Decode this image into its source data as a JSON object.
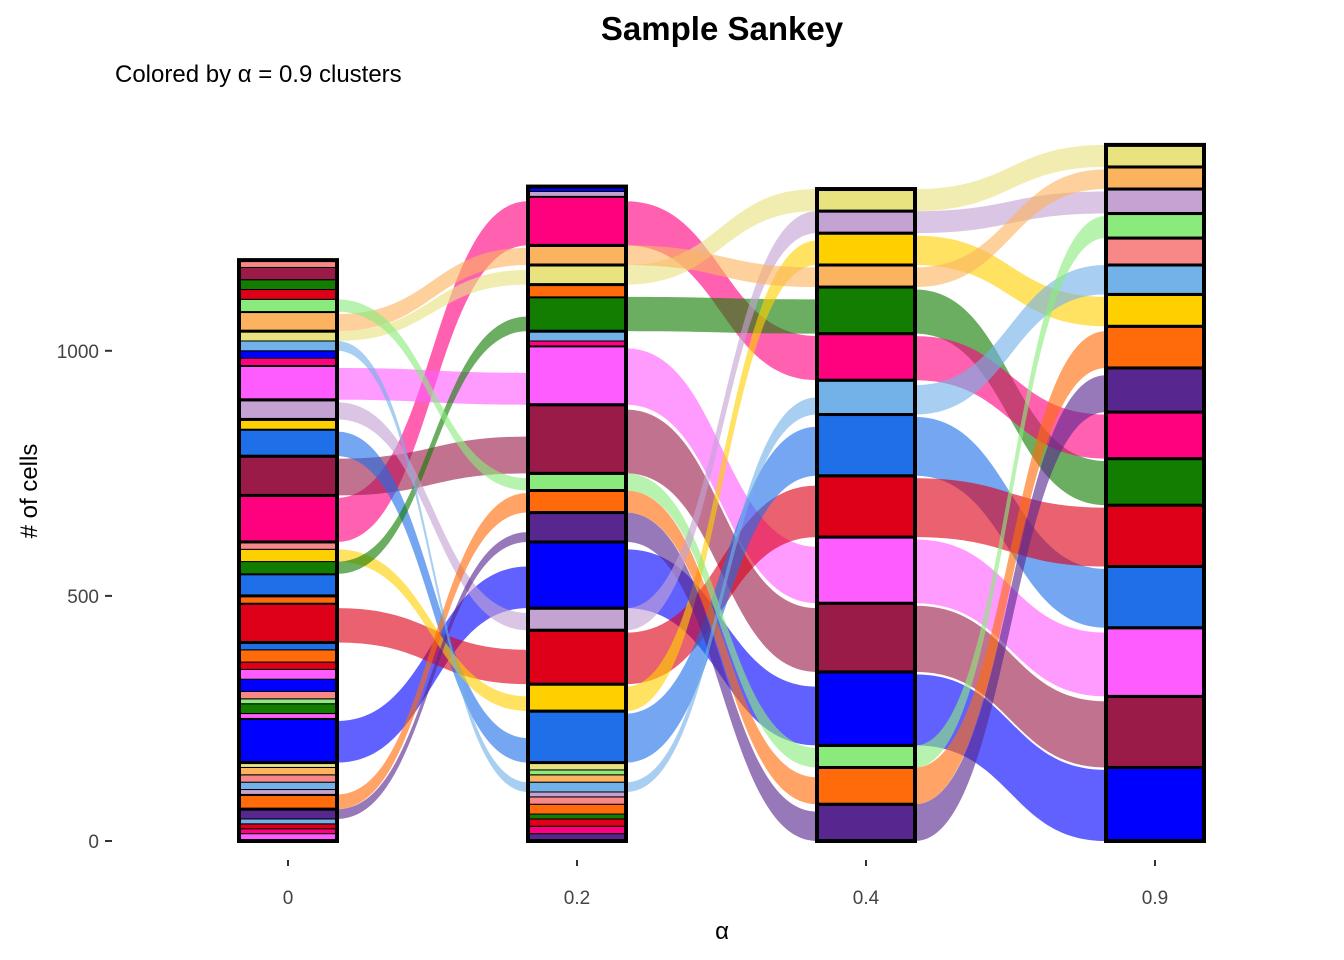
{
  "chart_data": {
    "type": "sankey",
    "title": "Sample Sankey",
    "subtitle": "Colored by α = 0.9 clusters",
    "xlabel": "α",
    "ylabel": "# of cells",
    "ylim": [
      0,
      1430
    ],
    "yticks": [
      0,
      500,
      1000
    ],
    "grid": false,
    "legend": "none",
    "axes": [
      "0",
      "0.2",
      "0.4",
      "0.9"
    ],
    "palette": {
      "blue": "#0000FF",
      "maroon": "#9B1B48",
      "pink": "#FF5CFF",
      "azure": "#1E6FE8",
      "red": "#DD0018",
      "green": "#127D00",
      "magenta": "#FF007F",
      "purple": "#57268E",
      "orange": "#FF6B0A",
      "gold": "#FFD000",
      "sky": "#72B2E8",
      "salmon": "#F88888",
      "lime": "#8AEB7C",
      "lavender": "#C4A3D3",
      "sand": "#FBB35F",
      "khaki": "#E8E27F"
    },
    "axis_strata": [
      {
        "axis": "0.9",
        "strata": [
          {
            "cluster": "blue",
            "cells": 150
          },
          {
            "cluster": "maroon",
            "cells": 145
          },
          {
            "cluster": "pink",
            "cells": 140
          },
          {
            "cluster": "azure",
            "cells": 125
          },
          {
            "cluster": "red",
            "cells": 125
          },
          {
            "cluster": "green",
            "cells": 95
          },
          {
            "cluster": "magenta",
            "cells": 95
          },
          {
            "cluster": "purple",
            "cells": 90
          },
          {
            "cluster": "orange",
            "cells": 85
          },
          {
            "cluster": "gold",
            "cells": 65
          },
          {
            "cluster": "sky",
            "cells": 60
          },
          {
            "cluster": "salmon",
            "cells": 55
          },
          {
            "cluster": "lime",
            "cells": 50
          },
          {
            "cluster": "lavender",
            "cells": 50
          },
          {
            "cluster": "sand",
            "cells": 45
          },
          {
            "cluster": "khaki",
            "cells": 45
          }
        ]
      },
      {
        "axis": "0.4",
        "strata": [
          {
            "cluster": "purple",
            "cells": 75
          },
          {
            "cluster": "orange",
            "cells": 75
          },
          {
            "cluster": "lime",
            "cells": 45
          },
          {
            "cluster": "blue",
            "cells": 150
          },
          {
            "cluster": "maroon",
            "cells": 140
          },
          {
            "cluster": "pink",
            "cells": 135
          },
          {
            "cluster": "red",
            "cells": 125
          },
          {
            "cluster": "azure",
            "cells": 125
          },
          {
            "cluster": "sky",
            "cells": 70
          },
          {
            "cluster": "magenta",
            "cells": 95
          },
          {
            "cluster": "green",
            "cells": 95
          },
          {
            "cluster": "sand",
            "cells": 45
          },
          {
            "cluster": "gold",
            "cells": 65
          },
          {
            "cluster": "lavender",
            "cells": 45
          },
          {
            "cluster": "khaki",
            "cells": 45
          }
        ]
      },
      {
        "axis": "0.2",
        "strata": [
          {
            "cluster": "purple",
            "cells": 15
          },
          {
            "cluster": "magenta",
            "cells": 15
          },
          {
            "cluster": "red",
            "cells": 15
          },
          {
            "cluster": "green",
            "cells": 10
          },
          {
            "cluster": "orange",
            "cells": 20
          },
          {
            "cluster": "salmon",
            "cells": 15
          },
          {
            "cluster": "lavender",
            "cells": 10
          },
          {
            "cluster": "sky",
            "cells": 20
          },
          {
            "cluster": "sand",
            "cells": 15
          },
          {
            "cluster": "lime",
            "cells": 10
          },
          {
            "cluster": "khaki",
            "cells": 15
          },
          {
            "cluster": "azure",
            "cells": 105
          },
          {
            "cluster": "gold",
            "cells": 55
          },
          {
            "cluster": "red",
            "cells": 110
          },
          {
            "cluster": "lavender",
            "cells": 45
          },
          {
            "cluster": "blue",
            "cells": 135
          },
          {
            "cluster": "purple",
            "cells": 60
          },
          {
            "cluster": "orange",
            "cells": 45
          },
          {
            "cluster": "lime",
            "cells": 35
          },
          {
            "cluster": "maroon",
            "cells": 140
          },
          {
            "cluster": "pink",
            "cells": 120
          },
          {
            "cluster": "magenta",
            "cells": 10
          },
          {
            "cluster": "sky",
            "cells": 20
          },
          {
            "cluster": "green",
            "cells": 70
          },
          {
            "cluster": "orange",
            "cells": 25
          },
          {
            "cluster": "khaki",
            "cells": 40
          },
          {
            "cluster": "sand",
            "cells": 40
          },
          {
            "cluster": "magenta",
            "cells": 100
          },
          {
            "cluster": "lavender",
            "cells": 10
          },
          {
            "cluster": "blue",
            "cells": 10
          }
        ]
      },
      {
        "axis": "0",
        "strata": [
          {
            "cluster": "pink",
            "cells": 15
          },
          {
            "cluster": "magenta",
            "cells": 10
          },
          {
            "cluster": "red",
            "cells": 10
          },
          {
            "cluster": "sky",
            "cells": 10
          },
          {
            "cluster": "purple",
            "cells": 20
          },
          {
            "cluster": "orange",
            "cells": 30
          },
          {
            "cluster": "lavender",
            "cells": 10
          },
          {
            "cluster": "sky",
            "cells": 15
          },
          {
            "cluster": "salmon",
            "cells": 15
          },
          {
            "cluster": "sand",
            "cells": 15
          },
          {
            "cluster": "khaki",
            "cells": 10
          },
          {
            "cluster": "blue",
            "cells": 90
          },
          {
            "cluster": "pink",
            "cells": 10
          },
          {
            "cluster": "green",
            "cells": 20
          },
          {
            "cluster": "lime",
            "cells": 10
          },
          {
            "cluster": "salmon",
            "cells": 15
          },
          {
            "cluster": "blue",
            "cells": 25
          },
          {
            "cluster": "pink",
            "cells": 20
          },
          {
            "cluster": "red",
            "cells": 15
          },
          {
            "cluster": "orange",
            "cells": 25
          },
          {
            "cluster": "azure",
            "cells": 15
          },
          {
            "cluster": "red",
            "cells": 80
          },
          {
            "cluster": "orange",
            "cells": 15
          },
          {
            "cluster": "azure",
            "cells": 45
          },
          {
            "cluster": "green",
            "cells": 25
          },
          {
            "cluster": "gold",
            "cells": 25
          },
          {
            "cluster": "salmon",
            "cells": 15
          },
          {
            "cluster": "magenta",
            "cells": 95
          },
          {
            "cluster": "maroon",
            "cells": 80
          },
          {
            "cluster": "azure",
            "cells": 55
          },
          {
            "cluster": "gold",
            "cells": 20
          },
          {
            "cluster": "lavender",
            "cells": 40
          },
          {
            "cluster": "pink",
            "cells": 70
          },
          {
            "cluster": "magenta",
            "cells": 15
          },
          {
            "cluster": "blue",
            "cells": 15
          },
          {
            "cluster": "sky",
            "cells": 20
          },
          {
            "cluster": "khaki",
            "cells": 20
          },
          {
            "cluster": "sand",
            "cells": 40
          },
          {
            "cluster": "lime",
            "cells": 25
          },
          {
            "cluster": "red",
            "cells": 20
          },
          {
            "cluster": "green",
            "cells": 20
          },
          {
            "cluster": "maroon",
            "cells": 25
          },
          {
            "cluster": "salmon",
            "cells": 15
          }
        ]
      }
    ],
    "flows": [
      {
        "from_axis": "0",
        "from": "blue",
        "to_axis": "0.2",
        "to": "blue",
        "cells": 85
      },
      {
        "from_axis": "0",
        "from": "red",
        "to_axis": "0.2",
        "to": "red",
        "cells": 70
      },
      {
        "from_axis": "0",
        "from": "magenta",
        "to_axis": "0.2",
        "to": "magenta",
        "cells": 90
      },
      {
        "from_axis": "0",
        "from": "maroon",
        "to_axis": "0.2",
        "to": "maroon",
        "cells": 75
      },
      {
        "from_axis": "0",
        "from": "azure",
        "to_axis": "0.2",
        "to": "azure",
        "cells": 50
      },
      {
        "from_axis": "0",
        "from": "pink",
        "to_axis": "0.2",
        "to": "pink",
        "cells": 65
      },
      {
        "from_axis": "0",
        "from": "gold",
        "to_axis": "0.2",
        "to": "gold",
        "cells": 30
      },
      {
        "from_axis": "0",
        "from": "green",
        "to_axis": "0.2",
        "to": "green",
        "cells": 30
      },
      {
        "from_axis": "0",
        "from": "lavender",
        "to_axis": "0.2",
        "to": "lavender",
        "cells": 35
      },
      {
        "from_axis": "0",
        "from": "khaki",
        "to_axis": "0.2",
        "to": "khaki",
        "cells": 30
      },
      {
        "from_axis": "0",
        "from": "sand",
        "to_axis": "0.2",
        "to": "sand",
        "cells": 35
      },
      {
        "from_axis": "0",
        "from": "lime",
        "to_axis": "0.2",
        "to": "lime",
        "cells": 25
      },
      {
        "from_axis": "0",
        "from": "orange",
        "to_axis": "0.2",
        "to": "orange",
        "cells": 40
      },
      {
        "from_axis": "0",
        "from": "purple",
        "to_axis": "0.2",
        "to": "purple",
        "cells": 20
      },
      {
        "from_axis": "0",
        "from": "sky",
        "to_axis": "0.2",
        "to": "sky",
        "cells": 25
      },
      {
        "from_axis": "0.2",
        "from": "blue",
        "to_axis": "0.4",
        "to": "blue",
        "cells": 120
      },
      {
        "from_axis": "0.2",
        "from": "maroon",
        "to_axis": "0.4",
        "to": "maroon",
        "cells": 130
      },
      {
        "from_axis": "0.2",
        "from": "pink",
        "to_axis": "0.4",
        "to": "pink",
        "cells": 115
      },
      {
        "from_axis": "0.2",
        "from": "red",
        "to_axis": "0.4",
        "to": "red",
        "cells": 105
      },
      {
        "from_axis": "0.2",
        "from": "azure",
        "to_axis": "0.4",
        "to": "azure",
        "cells": 100
      },
      {
        "from_axis": "0.2",
        "from": "magenta",
        "to_axis": "0.4",
        "to": "magenta",
        "cells": 90
      },
      {
        "from_axis": "0.2",
        "from": "green",
        "to_axis": "0.4",
        "to": "green",
        "cells": 70
      },
      {
        "from_axis": "0.2",
        "from": "gold",
        "to_axis": "0.4",
        "to": "gold",
        "cells": 50
      },
      {
        "from_axis": "0.2",
        "from": "purple",
        "to_axis": "0.4",
        "to": "purple",
        "cells": 60
      },
      {
        "from_axis": "0.2",
        "from": "orange",
        "to_axis": "0.4",
        "to": "orange",
        "cells": 55
      },
      {
        "from_axis": "0.2",
        "from": "lime",
        "to_axis": "0.4",
        "to": "lime",
        "cells": 40
      },
      {
        "from_axis": "0.2",
        "from": "lavender",
        "to_axis": "0.4",
        "to": "lavender",
        "cells": 45
      },
      {
        "from_axis": "0.2",
        "from": "khaki",
        "to_axis": "0.4",
        "to": "khaki",
        "cells": 45
      },
      {
        "from_axis": "0.2",
        "from": "sand",
        "to_axis": "0.4",
        "to": "sand",
        "cells": 40
      },
      {
        "from_axis": "0.2",
        "from": "sky",
        "to_axis": "0.4",
        "to": "sky",
        "cells": 35
      },
      {
        "from_axis": "0.4",
        "from": "blue",
        "to_axis": "0.9",
        "to": "blue",
        "cells": 145
      },
      {
        "from_axis": "0.4",
        "from": "maroon",
        "to_axis": "0.9",
        "to": "maroon",
        "cells": 135
      },
      {
        "from_axis": "0.4",
        "from": "pink",
        "to_axis": "0.9",
        "to": "pink",
        "cells": 130
      },
      {
        "from_axis": "0.4",
        "from": "azure",
        "to_axis": "0.9",
        "to": "azure",
        "cells": 120
      },
      {
        "from_axis": "0.4",
        "from": "red",
        "to_axis": "0.9",
        "to": "red",
        "cells": 120
      },
      {
        "from_axis": "0.4",
        "from": "green",
        "to_axis": "0.9",
        "to": "green",
        "cells": 90
      },
      {
        "from_axis": "0.4",
        "from": "magenta",
        "to_axis": "0.9",
        "to": "magenta",
        "cells": 90
      },
      {
        "from_axis": "0.4",
        "from": "purple",
        "to_axis": "0.9",
        "to": "purple",
        "cells": 75
      },
      {
        "from_axis": "0.4",
        "from": "orange",
        "to_axis": "0.9",
        "to": "orange",
        "cells": 75
      },
      {
        "from_axis": "0.4",
        "from": "gold",
        "to_axis": "0.9",
        "to": "gold",
        "cells": 60
      },
      {
        "from_axis": "0.4",
        "from": "sky",
        "to_axis": "0.9",
        "to": "sky",
        "cells": 60
      },
      {
        "from_axis": "0.4",
        "from": "salmon",
        "to_axis": "0.9",
        "to": "salmon",
        "cells": 40
      },
      {
        "from_axis": "0.4",
        "from": "lime",
        "to_axis": "0.9",
        "to": "lime",
        "cells": 45
      },
      {
        "from_axis": "0.4",
        "from": "lavender",
        "to_axis": "0.9",
        "to": "lavender",
        "cells": 45
      },
      {
        "from_axis": "0.4",
        "from": "sand",
        "to_axis": "0.9",
        "to": "sand",
        "cells": 40
      },
      {
        "from_axis": "0.4",
        "from": "khaki",
        "to_axis": "0.9",
        "to": "khaki",
        "cells": 45
      }
    ]
  }
}
